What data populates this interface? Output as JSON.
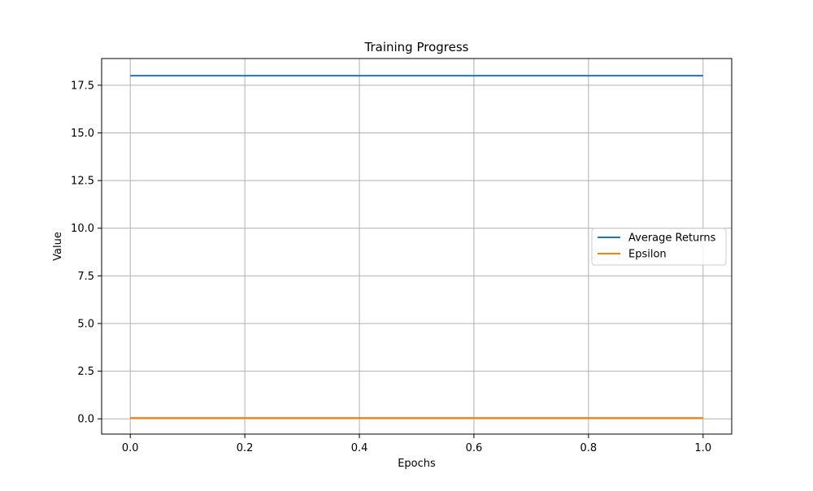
{
  "chart_data": {
    "type": "line",
    "title": "Training Progress",
    "xlabel": "Epochs",
    "ylabel": "Value",
    "xlim": [
      -0.05,
      1.05
    ],
    "ylim": [
      -0.8,
      18.9
    ],
    "xticks": [
      0.0,
      0.2,
      0.4,
      0.6,
      0.8,
      1.0
    ],
    "xtick_labels": [
      "0.0",
      "0.2",
      "0.4",
      "0.6",
      "0.8",
      "1.0"
    ],
    "yticks": [
      0.0,
      2.5,
      5.0,
      7.5,
      10.0,
      12.5,
      15.0,
      17.5
    ],
    "ytick_labels": [
      "0.0",
      "2.5",
      "5.0",
      "7.5",
      "10.0",
      "12.5",
      "15.0",
      "17.5"
    ],
    "grid": true,
    "legend_position": "center-right",
    "series": [
      {
        "name": "Average Returns",
        "color": "#1f77b4",
        "x": [
          0.0,
          1.0
        ],
        "y": [
          18.0,
          18.0
        ]
      },
      {
        "name": "Epsilon",
        "color": "#ff7f0e",
        "x": [
          0.0,
          1.0
        ],
        "y": [
          0.05,
          0.05
        ]
      }
    ]
  }
}
